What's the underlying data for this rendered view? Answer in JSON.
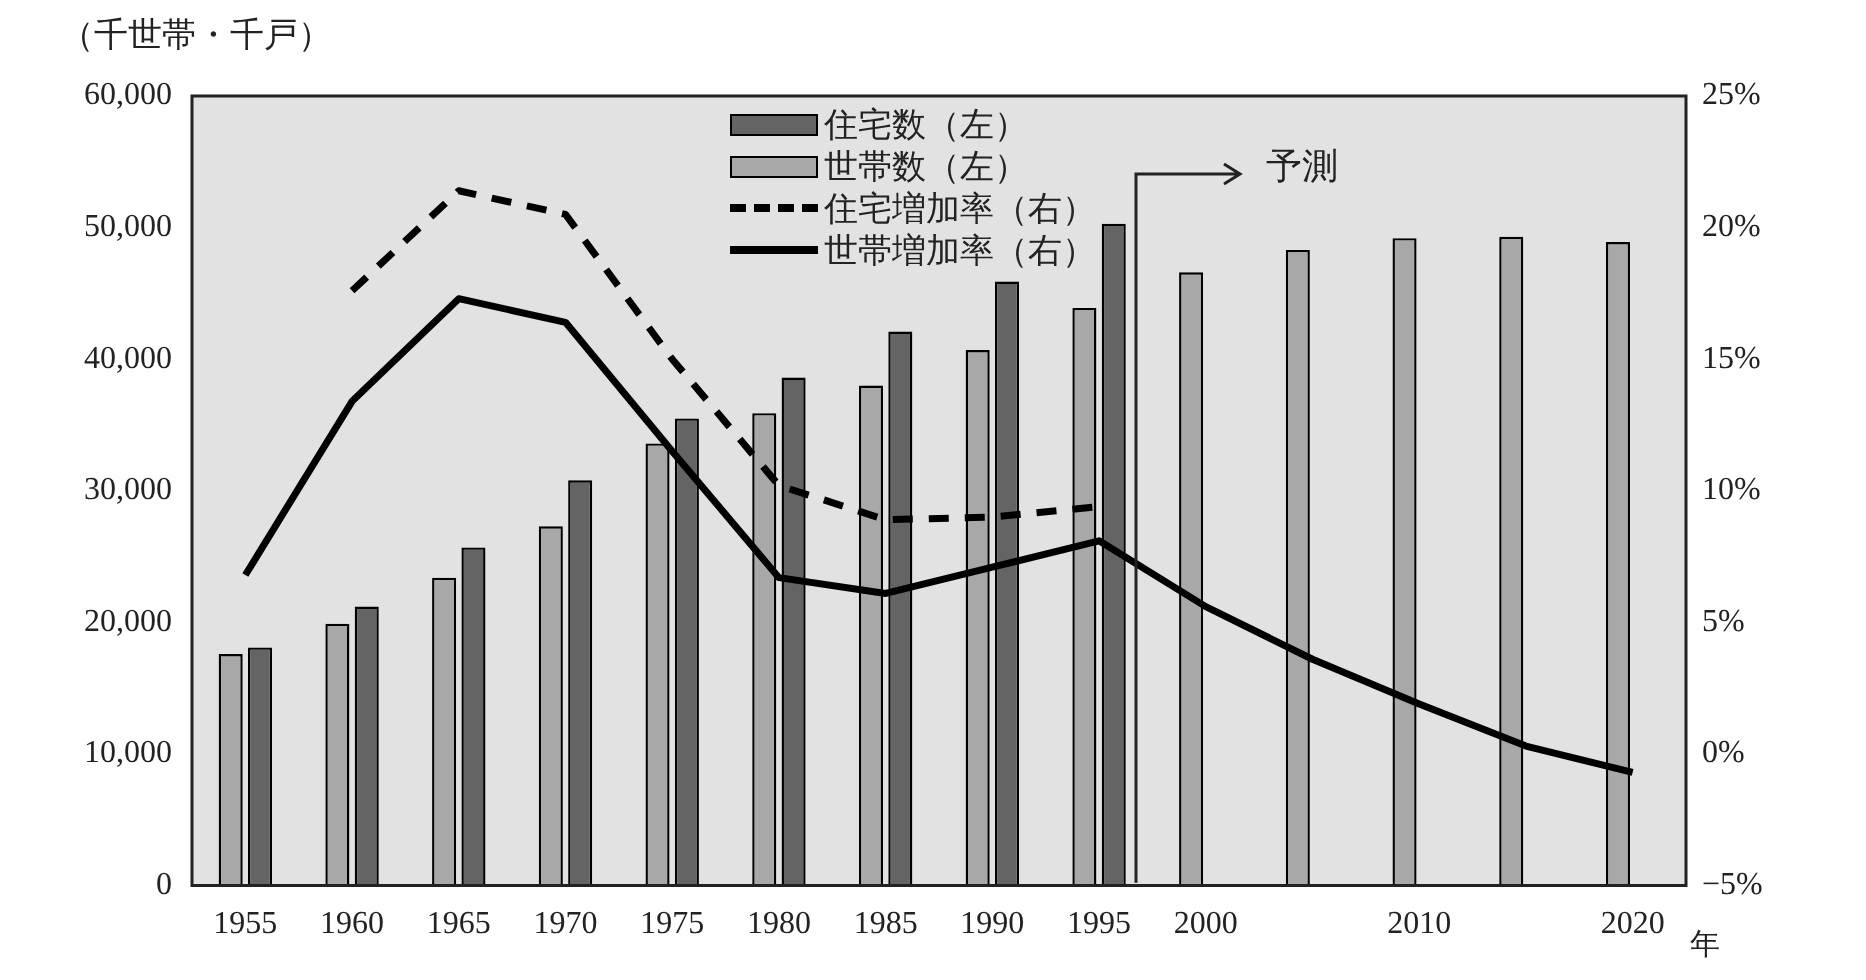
{
  "chart_data": {
    "type": "bar",
    "ylabel": "（千世帯・千戸）",
    "xlabel": "年",
    "categories": [
      "1955",
      "1960",
      "1965",
      "1970",
      "1975",
      "1980",
      "1985",
      "1990",
      "1995",
      "2000",
      null,
      "2010",
      null,
      "2020"
    ],
    "series": [
      {
        "name": "住宅数（左）",
        "color": "#646464",
        "values": [
          18100,
          21200,
          25700,
          30800,
          35500,
          38600,
          42100,
          45900,
          50300,
          null,
          null,
          null,
          null,
          null
        ]
      },
      {
        "name": "世帯数（左）",
        "color": "#a8a8a8",
        "values": [
          17600,
          19900,
          23400,
          27300,
          33600,
          35900,
          38000,
          40700,
          43900,
          46600,
          48300,
          49200,
          49300,
          48900
        ]
      },
      {
        "name": "住宅増加率（右）",
        "type": "line",
        "axis": "y2",
        "line_style": "dashed",
        "color": "#000000",
        "values": [
          null,
          17.6,
          21.4,
          20.5,
          15.0,
          10.2,
          8.9,
          9.0,
          9.4,
          null,
          null,
          null,
          null,
          null
        ]
      },
      {
        "name": "世帯増加率（右）",
        "type": "line",
        "axis": "y2",
        "line_style": "solid",
        "color": "#000000",
        "values": [
          6.8,
          13.4,
          17.3,
          16.4,
          11.5,
          6.7,
          6.1,
          7.1,
          8.1,
          5.6,
          3.6,
          1.9,
          0.3,
          -0.7
        ]
      }
    ],
    "ylim": [
      0,
      60000
    ],
    "yticks": [
      0,
      {
        "value": 10000,
        "label": "10,000"
      },
      {
        "value": 20000,
        "label": "20,000"
      },
      {
        "value": 30000,
        "label": "30,000"
      },
      {
        "value": 40000,
        "label": "40,000"
      },
      {
        "value": 50000,
        "label": "50,000"
      },
      {
        "value": 60000,
        "label": "60,000"
      }
    ],
    "y2lim": [
      -5,
      25
    ],
    "y2ticks": [
      {
        "value": -5,
        "label": "−5%"
      },
      {
        "value": 0,
        "label": "0%"
      },
      {
        "value": 5,
        "label": "5%"
      },
      {
        "value": 10,
        "label": "10%"
      },
      {
        "value": 15,
        "label": "15%"
      },
      {
        "value": 20,
        "label": "20%"
      },
      {
        "value": 25,
        "label": "25%"
      }
    ],
    "annotations": [
      "予測"
    ],
    "legend": "top",
    "marker": "none",
    "grid": false
  }
}
